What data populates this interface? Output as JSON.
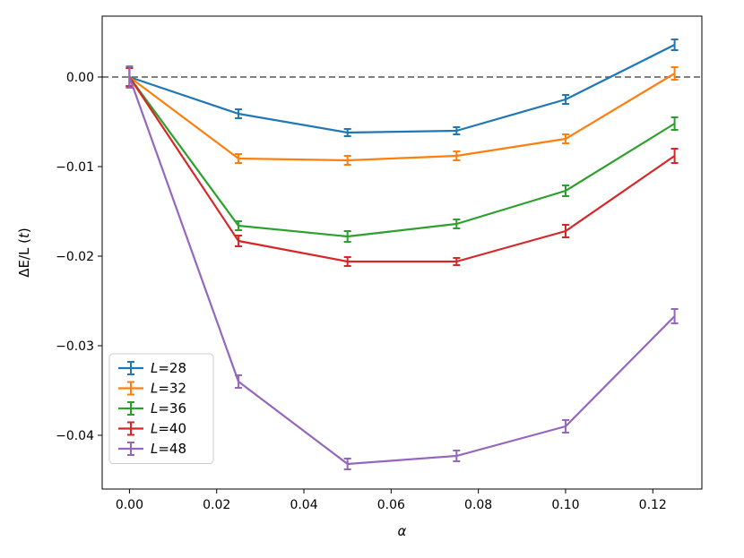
{
  "chart_data": {
    "type": "line",
    "title": "",
    "xlabel": "α",
    "ylabel_prefix": "ΔE/L (",
    "ylabel_var": "t",
    "ylabel_suffix": ")",
    "xlim": [
      -0.00625,
      0.13125
    ],
    "ylim": [
      -0.046,
      0.0068
    ],
    "xticks": [
      0.0,
      0.02,
      0.04,
      0.06,
      0.08,
      0.1,
      0.12
    ],
    "xtick_labels": [
      "0.00",
      "0.02",
      "0.04",
      "0.06",
      "0.08",
      "0.10",
      "0.12"
    ],
    "yticks": [
      0.0,
      -0.01,
      -0.02,
      -0.03,
      -0.04
    ],
    "ytick_labels": [
      "0.00",
      "−0.01",
      "−0.02",
      "−0.03",
      "−0.04"
    ],
    "reference_line": {
      "y": 0.0,
      "style": "dashed",
      "color": "#808080"
    },
    "legend_position": "lower-left",
    "x": [
      0.0,
      0.025,
      0.05,
      0.075,
      0.1,
      0.125
    ],
    "series": [
      {
        "name": "L=28",
        "label_var": "L",
        "label_rest": "=28",
        "color": "#1f77b4",
        "values": [
          0.0,
          -0.0041,
          -0.0062,
          -0.006,
          -0.0025,
          0.0036
        ],
        "errors": [
          0.001,
          0.0005,
          0.0004,
          0.0004,
          0.0005,
          0.0006
        ]
      },
      {
        "name": "L=32",
        "label_var": "L",
        "label_rest": "=32",
        "color": "#ff7f0e",
        "values": [
          0.0,
          -0.0091,
          -0.0093,
          -0.0088,
          -0.0069,
          0.0004
        ],
        "errors": [
          0.001,
          0.0005,
          0.0005,
          0.0005,
          0.0005,
          0.0007
        ]
      },
      {
        "name": "L=36",
        "label_var": "L",
        "label_rest": "=36",
        "color": "#2ca02c",
        "values": [
          0.0,
          -0.0166,
          -0.0178,
          -0.0164,
          -0.0127,
          -0.0052
        ],
        "errors": [
          0.001,
          0.0005,
          0.0006,
          0.0005,
          0.0006,
          0.0007
        ]
      },
      {
        "name": "L=40",
        "label_var": "L",
        "label_rest": "=40",
        "color": "#d62728",
        "values": [
          0.0,
          -0.0183,
          -0.0206,
          -0.0206,
          -0.0172,
          -0.0088
        ],
        "errors": [
          0.001,
          0.0006,
          0.0005,
          0.0004,
          0.0007,
          0.0008
        ]
      },
      {
        "name": "L=48",
        "label_var": "L",
        "label_rest": "=48",
        "color": "#9467bd",
        "values": [
          0.0,
          -0.034,
          -0.0432,
          -0.0423,
          -0.039,
          -0.0267
        ],
        "errors": [
          0.0012,
          0.0007,
          0.0006,
          0.0006,
          0.0007,
          0.0008
        ]
      }
    ]
  }
}
